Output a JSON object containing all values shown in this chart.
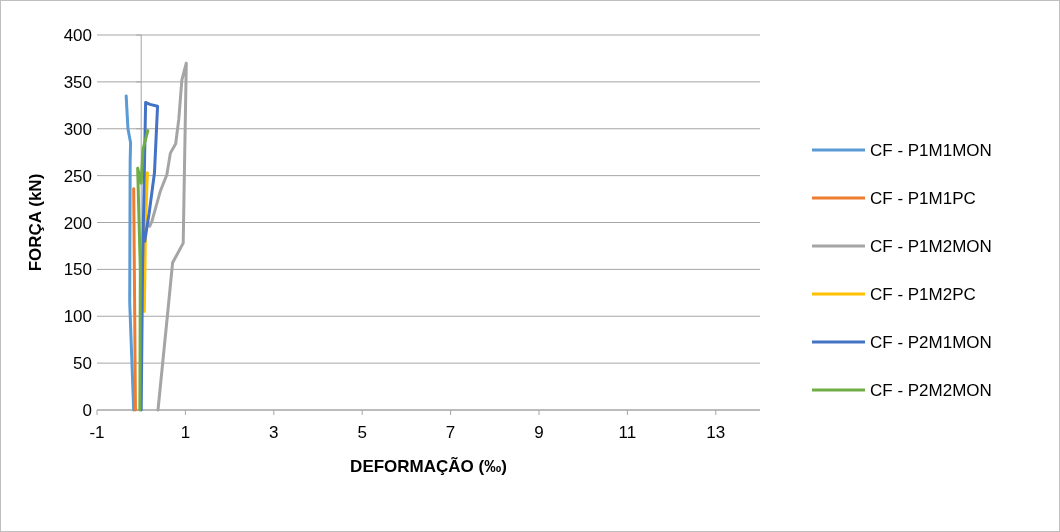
{
  "chart_data": {
    "type": "line",
    "xlabel": "DEFORMAÇÃO (‰)",
    "ylabel": "FORÇA (kN)",
    "xlim": [
      -1,
      14
    ],
    "xticks": [
      -1,
      1,
      3,
      5,
      7,
      9,
      11,
      13
    ],
    "ylim": [
      0,
      400
    ],
    "yticks": [
      0,
      50,
      100,
      150,
      200,
      250,
      300,
      350,
      400
    ],
    "grid": "y",
    "legend": "right",
    "marker": "none",
    "line_style": "solid",
    "series": [
      {
        "name": "CF - P1M1MON",
        "color": "#5b9bd5",
        "x": [
          -0.17,
          -0.26,
          -0.25,
          -0.24,
          -0.3,
          -0.34
        ],
        "values": [
          0,
          115,
          265,
          285,
          300,
          335
        ]
      },
      {
        "name": "CF - P1M1PC",
        "color": "#ed7d31",
        "x": [
          -0.13,
          -0.15,
          -0.17
        ],
        "values": [
          0,
          120,
          236
        ]
      },
      {
        "name": "CF - P1M2MON",
        "color": "#a5a5a5",
        "x": [
          0.38,
          0.6,
          0.71,
          0.95,
          1.02,
          0.92,
          0.85,
          0.78,
          0.66,
          0.58,
          0.43,
          0.24,
          0.19
        ],
        "values": [
          0,
          104,
          157,
          178,
          370,
          352,
          310,
          284,
          274,
          251,
          233,
          201,
          196
        ]
      },
      {
        "name": "CF - P1M2PC",
        "color": "#ffc000",
        "x": [
          0.07,
          0.1,
          0.14
        ],
        "values": [
          105,
          200,
          253
        ]
      },
      {
        "name": "CF - P2M1MON",
        "color": "#4472c4",
        "x": [
          0,
          0.03,
          0.1,
          0.2,
          0.37,
          0.3,
          0.18,
          0.08
        ],
        "values": [
          0,
          150,
          328,
          326,
          324,
          253,
          210,
          180
        ]
      },
      {
        "name": "CF - P2M2MON",
        "color": "#70ad47",
        "x": [
          -0.03,
          -0.02,
          -0.08,
          0.0,
          0.04,
          0.15
        ],
        "values": [
          0,
          150,
          258,
          242,
          278,
          298
        ]
      }
    ]
  }
}
